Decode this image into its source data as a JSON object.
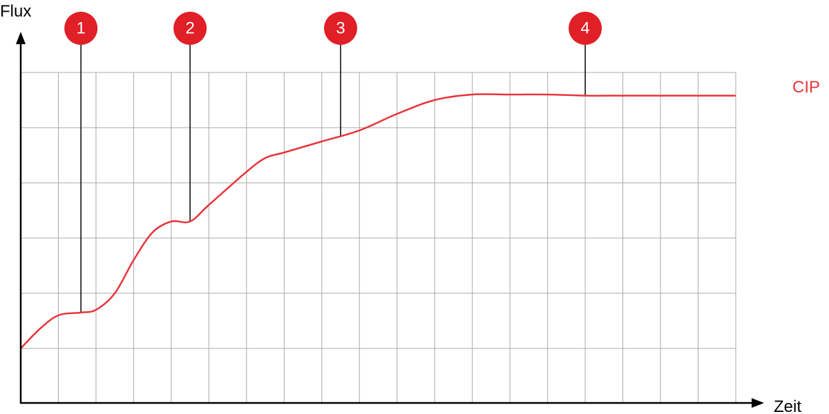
{
  "chart_data": {
    "type": "line",
    "xlabel": "Zeit",
    "ylabel": "Flux",
    "grid": true,
    "xlim": [
      0,
      19
    ],
    "ylim": [
      0,
      6
    ],
    "series": [
      {
        "name": "CIP",
        "color": "#e8343a",
        "points": [
          [
            0.0,
            1.0
          ],
          [
            0.5,
            1.35
          ],
          [
            1.0,
            1.6
          ],
          [
            1.6,
            1.65
          ],
          [
            2.0,
            1.7
          ],
          [
            2.5,
            2.0
          ],
          [
            3.0,
            2.6
          ],
          [
            3.5,
            3.1
          ],
          [
            4.0,
            3.3
          ],
          [
            4.5,
            3.3
          ],
          [
            5.0,
            3.6
          ],
          [
            6.0,
            4.2
          ],
          [
            6.5,
            4.45
          ],
          [
            7.0,
            4.55
          ],
          [
            8.0,
            4.75
          ],
          [
            9.0,
            4.95
          ],
          [
            10.0,
            5.25
          ],
          [
            11.0,
            5.5
          ],
          [
            12.0,
            5.6
          ],
          [
            13.0,
            5.6
          ],
          [
            14.0,
            5.6
          ],
          [
            15.0,
            5.58
          ],
          [
            16.0,
            5.58
          ],
          [
            17.0,
            5.58
          ],
          [
            18.0,
            5.58
          ],
          [
            19.0,
            5.58
          ]
        ]
      }
    ],
    "markers": [
      {
        "label": "1",
        "x": 1.6
      },
      {
        "label": "2",
        "x": 4.5
      },
      {
        "label": "3",
        "x": 8.5
      },
      {
        "label": "4",
        "x": 15.0
      }
    ],
    "marker_color": "#e01f26"
  }
}
